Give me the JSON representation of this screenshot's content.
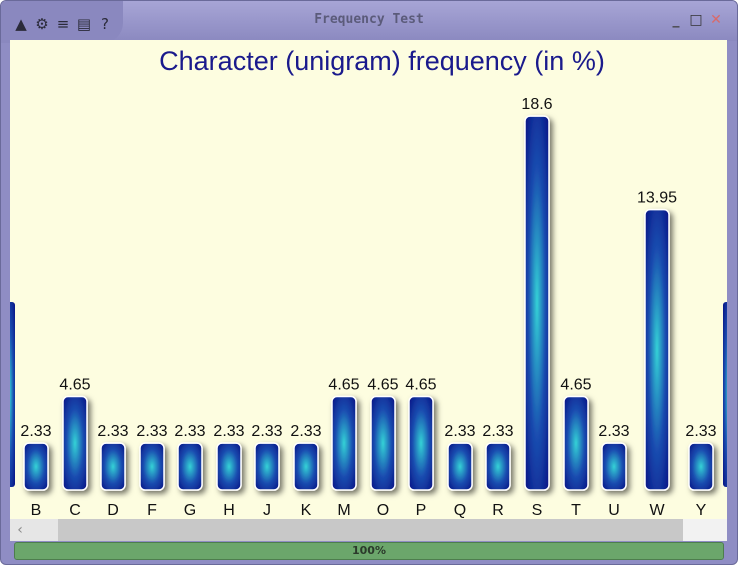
{
  "window": {
    "title": "Frequency Test",
    "progress_percent": 100,
    "progress_label": "100%",
    "toolbar_icons": [
      "image-icon",
      "gear-icon",
      "list-icon",
      "clipboard-icon",
      "help-icon"
    ],
    "controls": [
      "minimize-icon",
      "maximize-icon",
      "close-icon"
    ]
  },
  "colors": {
    "title_bar": "#8f8dc4",
    "plot_background": "#fdfde0",
    "bar_dark": "#0a1a8a",
    "bar_light": "#34d2d6",
    "title_text": "#1a1a8c",
    "progress": "#5f9e5f"
  },
  "chart_data": {
    "type": "bar",
    "title": "Character (unigram) frequency (in %)",
    "categories": [
      "B",
      "C",
      "D",
      "F",
      "G",
      "H",
      "J",
      "K",
      "M",
      "O",
      "P",
      "Q",
      "R",
      "S",
      "T",
      "U",
      "W",
      "Y"
    ],
    "values": [
      2.33,
      4.65,
      2.33,
      2.33,
      2.33,
      2.33,
      2.33,
      2.33,
      4.65,
      4.65,
      4.65,
      2.33,
      2.33,
      18.6,
      4.65,
      2.33,
      13.95,
      2.33
    ],
    "value_labels": [
      "2.33",
      "4.65",
      "2.33",
      "2.33",
      "2.33",
      "2.33",
      "2.33",
      "2.33",
      "4.65",
      "4.65",
      "4.65",
      "2.33",
      "2.33",
      "18.6",
      "4.65",
      "2.33",
      "13.95",
      "2.33"
    ],
    "xlabel": "",
    "ylabel": "",
    "grid": false
  }
}
